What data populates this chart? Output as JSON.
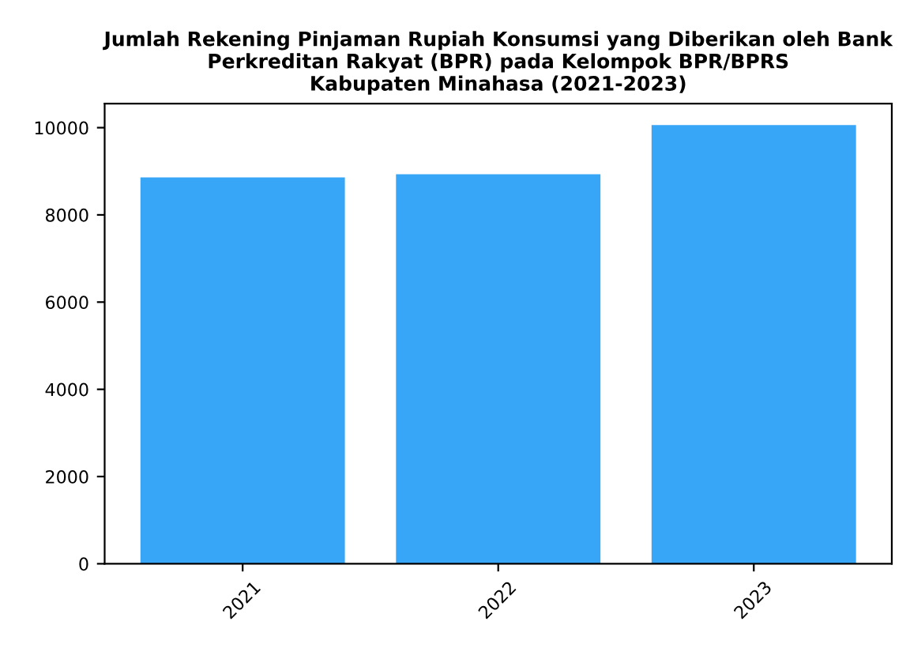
{
  "chart_data": {
    "type": "bar",
    "title": "Jumlah Rekening Pinjaman Rupiah Konsumsi yang Diberikan oleh Bank\nPerkreditan Rakyat (BPR) pada Kelompok BPR/BPRS\nKabupaten Minahasa (2021-2023)",
    "categories": [
      "2021",
      "2022",
      "2023"
    ],
    "values": [
      8860,
      8930,
      10060
    ],
    "color": "#38a6f7",
    "ylim": [
      0,
      10550
    ],
    "yticks": [
      0,
      2000,
      4000,
      6000,
      8000,
      10000
    ],
    "grid": false
  }
}
